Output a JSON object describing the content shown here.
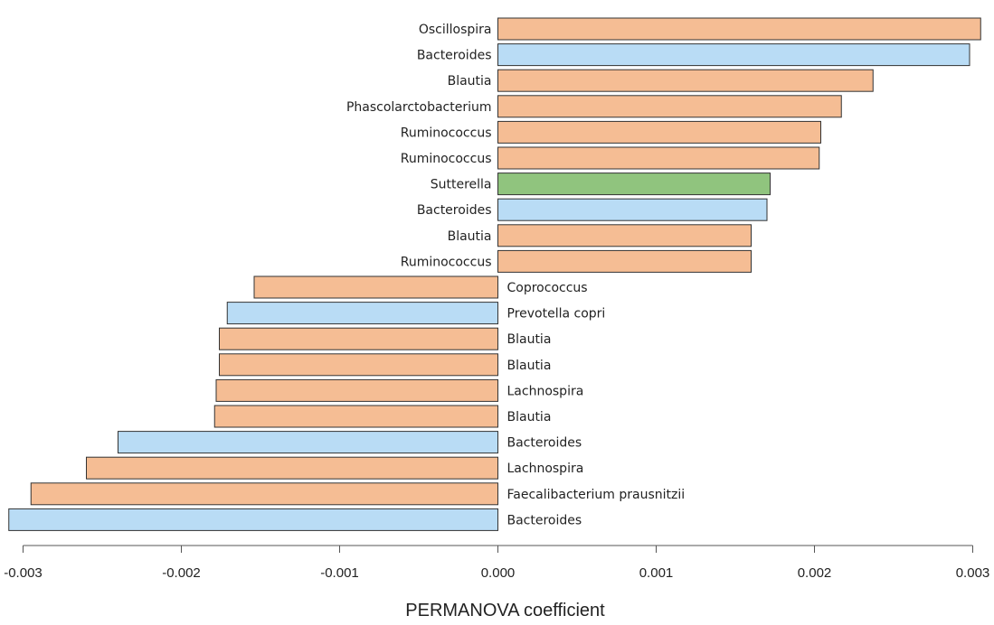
{
  "chart_data": {
    "type": "bar",
    "orientation": "horizontal",
    "xlabel": "PERMANOVA coefficient",
    "ylabel": "",
    "title": "",
    "xlim": [
      -0.00312,
      0.00305
    ],
    "x_ticks": [
      -0.003,
      -0.002,
      -0.001,
      0.0,
      0.001,
      0.002,
      0.003
    ],
    "x_tick_labels": [
      "-0.003",
      "-0.002",
      "-0.001",
      "0.000",
      "0.001",
      "0.002",
      "0.003"
    ],
    "grid": false,
    "colors": {
      "orange": "#f5bd94",
      "blue": "#b9dcf5",
      "green": "#90c47e",
      "edge": "#333333"
    },
    "bars": [
      {
        "label": "Oscillospira",
        "value": 0.00305,
        "color": "orange"
      },
      {
        "label": "Bacteroides",
        "value": 0.00298,
        "color": "blue"
      },
      {
        "label": "Blautia",
        "value": 0.00237,
        "color": "orange"
      },
      {
        "label": "Phascolarctobacterium",
        "value": 0.00217,
        "color": "orange"
      },
      {
        "label": "Ruminococcus",
        "value": 0.00204,
        "color": "orange"
      },
      {
        "label": "Ruminococcus",
        "value": 0.00203,
        "color": "orange"
      },
      {
        "label": "Sutterella",
        "value": 0.00172,
        "color": "green"
      },
      {
        "label": "Bacteroides",
        "value": 0.0017,
        "color": "blue"
      },
      {
        "label": "Blautia",
        "value": 0.0016,
        "color": "orange"
      },
      {
        "label": "Ruminococcus",
        "value": 0.0016,
        "color": "orange"
      },
      {
        "label": "Coprococcus",
        "value": -0.00154,
        "color": "orange"
      },
      {
        "label": "Prevotella copri",
        "value": -0.00171,
        "color": "blue"
      },
      {
        "label": "Blautia",
        "value": -0.00176,
        "color": "orange"
      },
      {
        "label": "Blautia",
        "value": -0.00176,
        "color": "orange"
      },
      {
        "label": "Lachnospira",
        "value": -0.00178,
        "color": "orange"
      },
      {
        "label": "Blautia",
        "value": -0.00179,
        "color": "orange"
      },
      {
        "label": "Bacteroides",
        "value": -0.0024,
        "color": "blue"
      },
      {
        "label": "Lachnospira",
        "value": -0.0026,
        "color": "orange"
      },
      {
        "label": "Faecalibacterium prausnitzii",
        "value": -0.00295,
        "color": "orange"
      },
      {
        "label": "Bacteroides",
        "value": -0.00309,
        "color": "blue"
      }
    ]
  }
}
